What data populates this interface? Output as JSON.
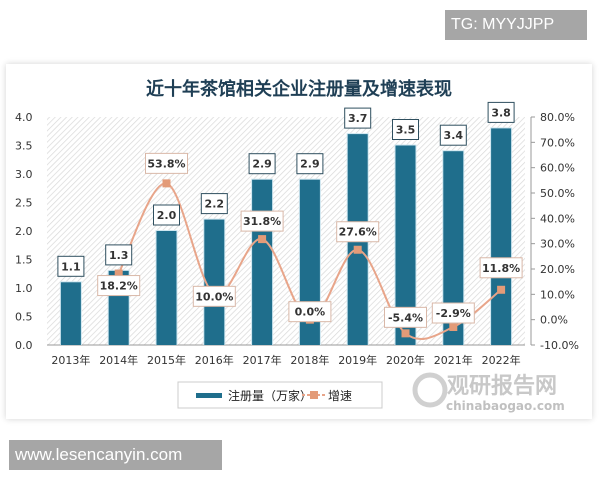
{
  "watermarks": {
    "top": "TG: MYYJJPP",
    "bottom": "www.lesencanyin.com",
    "brand_cn": "观研报告网",
    "brand_url": "chinabaogao.com"
  },
  "colors": {
    "bar": "#1f6e8c",
    "line": "#e8a58a",
    "marker": "#e39b78",
    "title": "#1f3f55"
  },
  "chart_data": {
    "type": "bar+line",
    "title": "近十年茶馆相关企业注册量及增速表现",
    "categories": [
      "2013年",
      "2014年",
      "2015年",
      "2016年",
      "2017年",
      "2018年",
      "2019年",
      "2020年",
      "2021年",
      "2022年"
    ],
    "series": [
      {
        "name": "注册量（万家）",
        "type": "bar",
        "axis": "left",
        "values": [
          1.1,
          1.3,
          2.0,
          2.2,
          2.9,
          2.9,
          3.7,
          3.5,
          3.4,
          3.8
        ],
        "labels": [
          "1.1",
          "1.3",
          "2.0",
          "2.2",
          "2.9",
          "2.9",
          "3.7",
          "3.5",
          "3.4",
          "3.8"
        ]
      },
      {
        "name": "增速",
        "type": "line",
        "axis": "right",
        "values": [
          null,
          18.2,
          53.8,
          10.0,
          31.8,
          0.0,
          27.6,
          -5.4,
          -2.9,
          11.8
        ],
        "labels": [
          "",
          "18.2%",
          "53.8%",
          "10.0%",
          "31.8%",
          "0.0%",
          "27.6%",
          "-5.4%",
          "-2.9%",
          "11.8%"
        ]
      }
    ],
    "y_left": {
      "ylim": [
        0,
        4.0
      ],
      "ticks": [
        "0.0",
        "0.5",
        "1.0",
        "1.5",
        "2.0",
        "2.5",
        "3.0",
        "3.5",
        "4.0"
      ]
    },
    "y_right": {
      "ylim": [
        -10,
        80
      ],
      "ticks": [
        "-10.0%",
        "0.0%",
        "10.0%",
        "20.0%",
        "30.0%",
        "40.0%",
        "50.0%",
        "60.0%",
        "70.0%",
        "80.0%"
      ]
    },
    "xlabel": "",
    "ylabel": "",
    "legend": {
      "position": "bottom",
      "entries": [
        "注册量（万家）",
        "增速"
      ]
    },
    "grid": false
  }
}
